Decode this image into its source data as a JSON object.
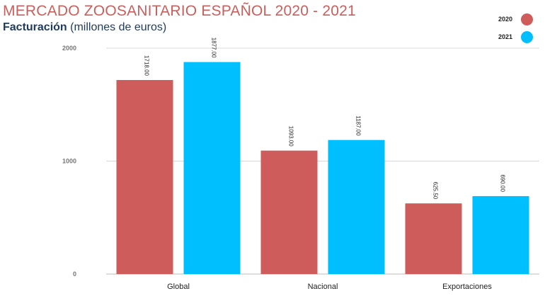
{
  "chart_data": {
    "type": "bar",
    "title": "MERCADO ZOOSANITARIO ESPAÑOL 2020 - 2021",
    "subtitle_bold": "Facturación",
    "subtitle_rest": " (millones de euros)",
    "categories": [
      "Global",
      "Nacional",
      "Exportaciones"
    ],
    "series": [
      {
        "name": "2020",
        "color": "#cd5c5a",
        "values": [
          1718.0,
          1093.0,
          625.5
        ]
      },
      {
        "name": "2021",
        "color": "#00bfff",
        "values": [
          1877.0,
          1187.0,
          690.0
        ]
      }
    ],
    "ylim": [
      0,
      2000
    ],
    "yticks": [
      0,
      1000,
      2000
    ],
    "legend_position": "top-right",
    "grid": true
  }
}
